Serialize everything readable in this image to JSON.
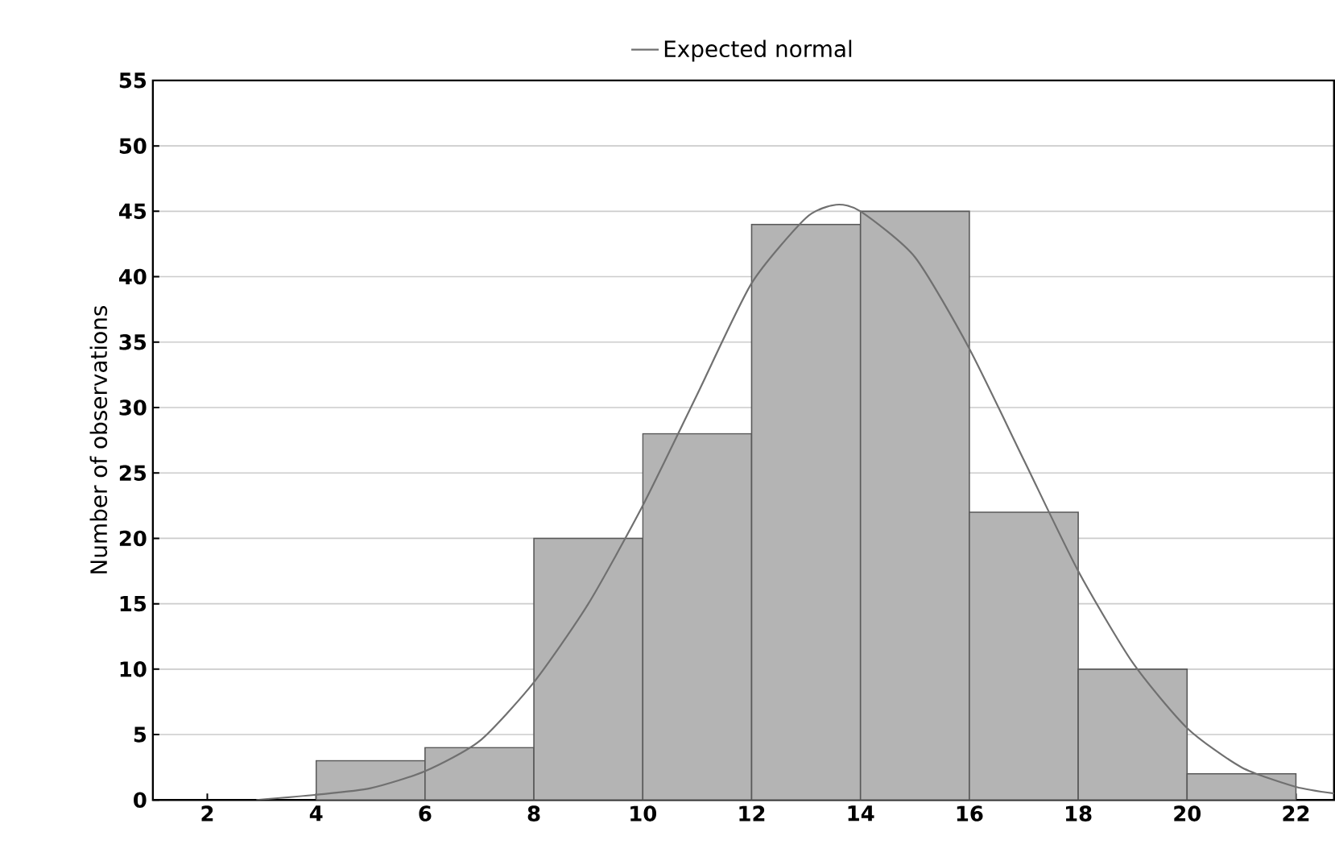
{
  "chart_data": {
    "type": "histogram",
    "ylabel": "Number of observations",
    "bins": [
      4,
      6,
      8,
      10,
      12,
      14,
      16,
      18,
      20,
      22
    ],
    "values": [
      3,
      4,
      20,
      28,
      44,
      45,
      22,
      10,
      2
    ],
    "color": "#b4b4b4",
    "series": [
      {
        "type": "line",
        "name": "Expected normal",
        "color": "#707070",
        "x": [
          2.9,
          4,
          5,
          6,
          7,
          8,
          9,
          10,
          11,
          12,
          13,
          13.55,
          14,
          15,
          16,
          17,
          18,
          19,
          20,
          21,
          22,
          22.7
        ],
        "values": [
          0,
          0.4,
          0.9,
          2.2,
          4.5,
          9,
          15,
          22.5,
          31,
          39.5,
          44.5,
          45.5,
          45,
          41.5,
          34.5,
          26,
          17.5,
          10.5,
          5.5,
          2.5,
          1,
          0.5
        ]
      }
    ],
    "xlim": [
      1,
      22.7
    ],
    "xticks": [
      2,
      4,
      6,
      8,
      10,
      12,
      14,
      16,
      18,
      20,
      22
    ],
    "ylim": [
      0,
      55
    ],
    "yticks": [
      0,
      5,
      10,
      15,
      20,
      25,
      30,
      35,
      40,
      45,
      50,
      55
    ],
    "grid": "y",
    "legend": "top"
  }
}
